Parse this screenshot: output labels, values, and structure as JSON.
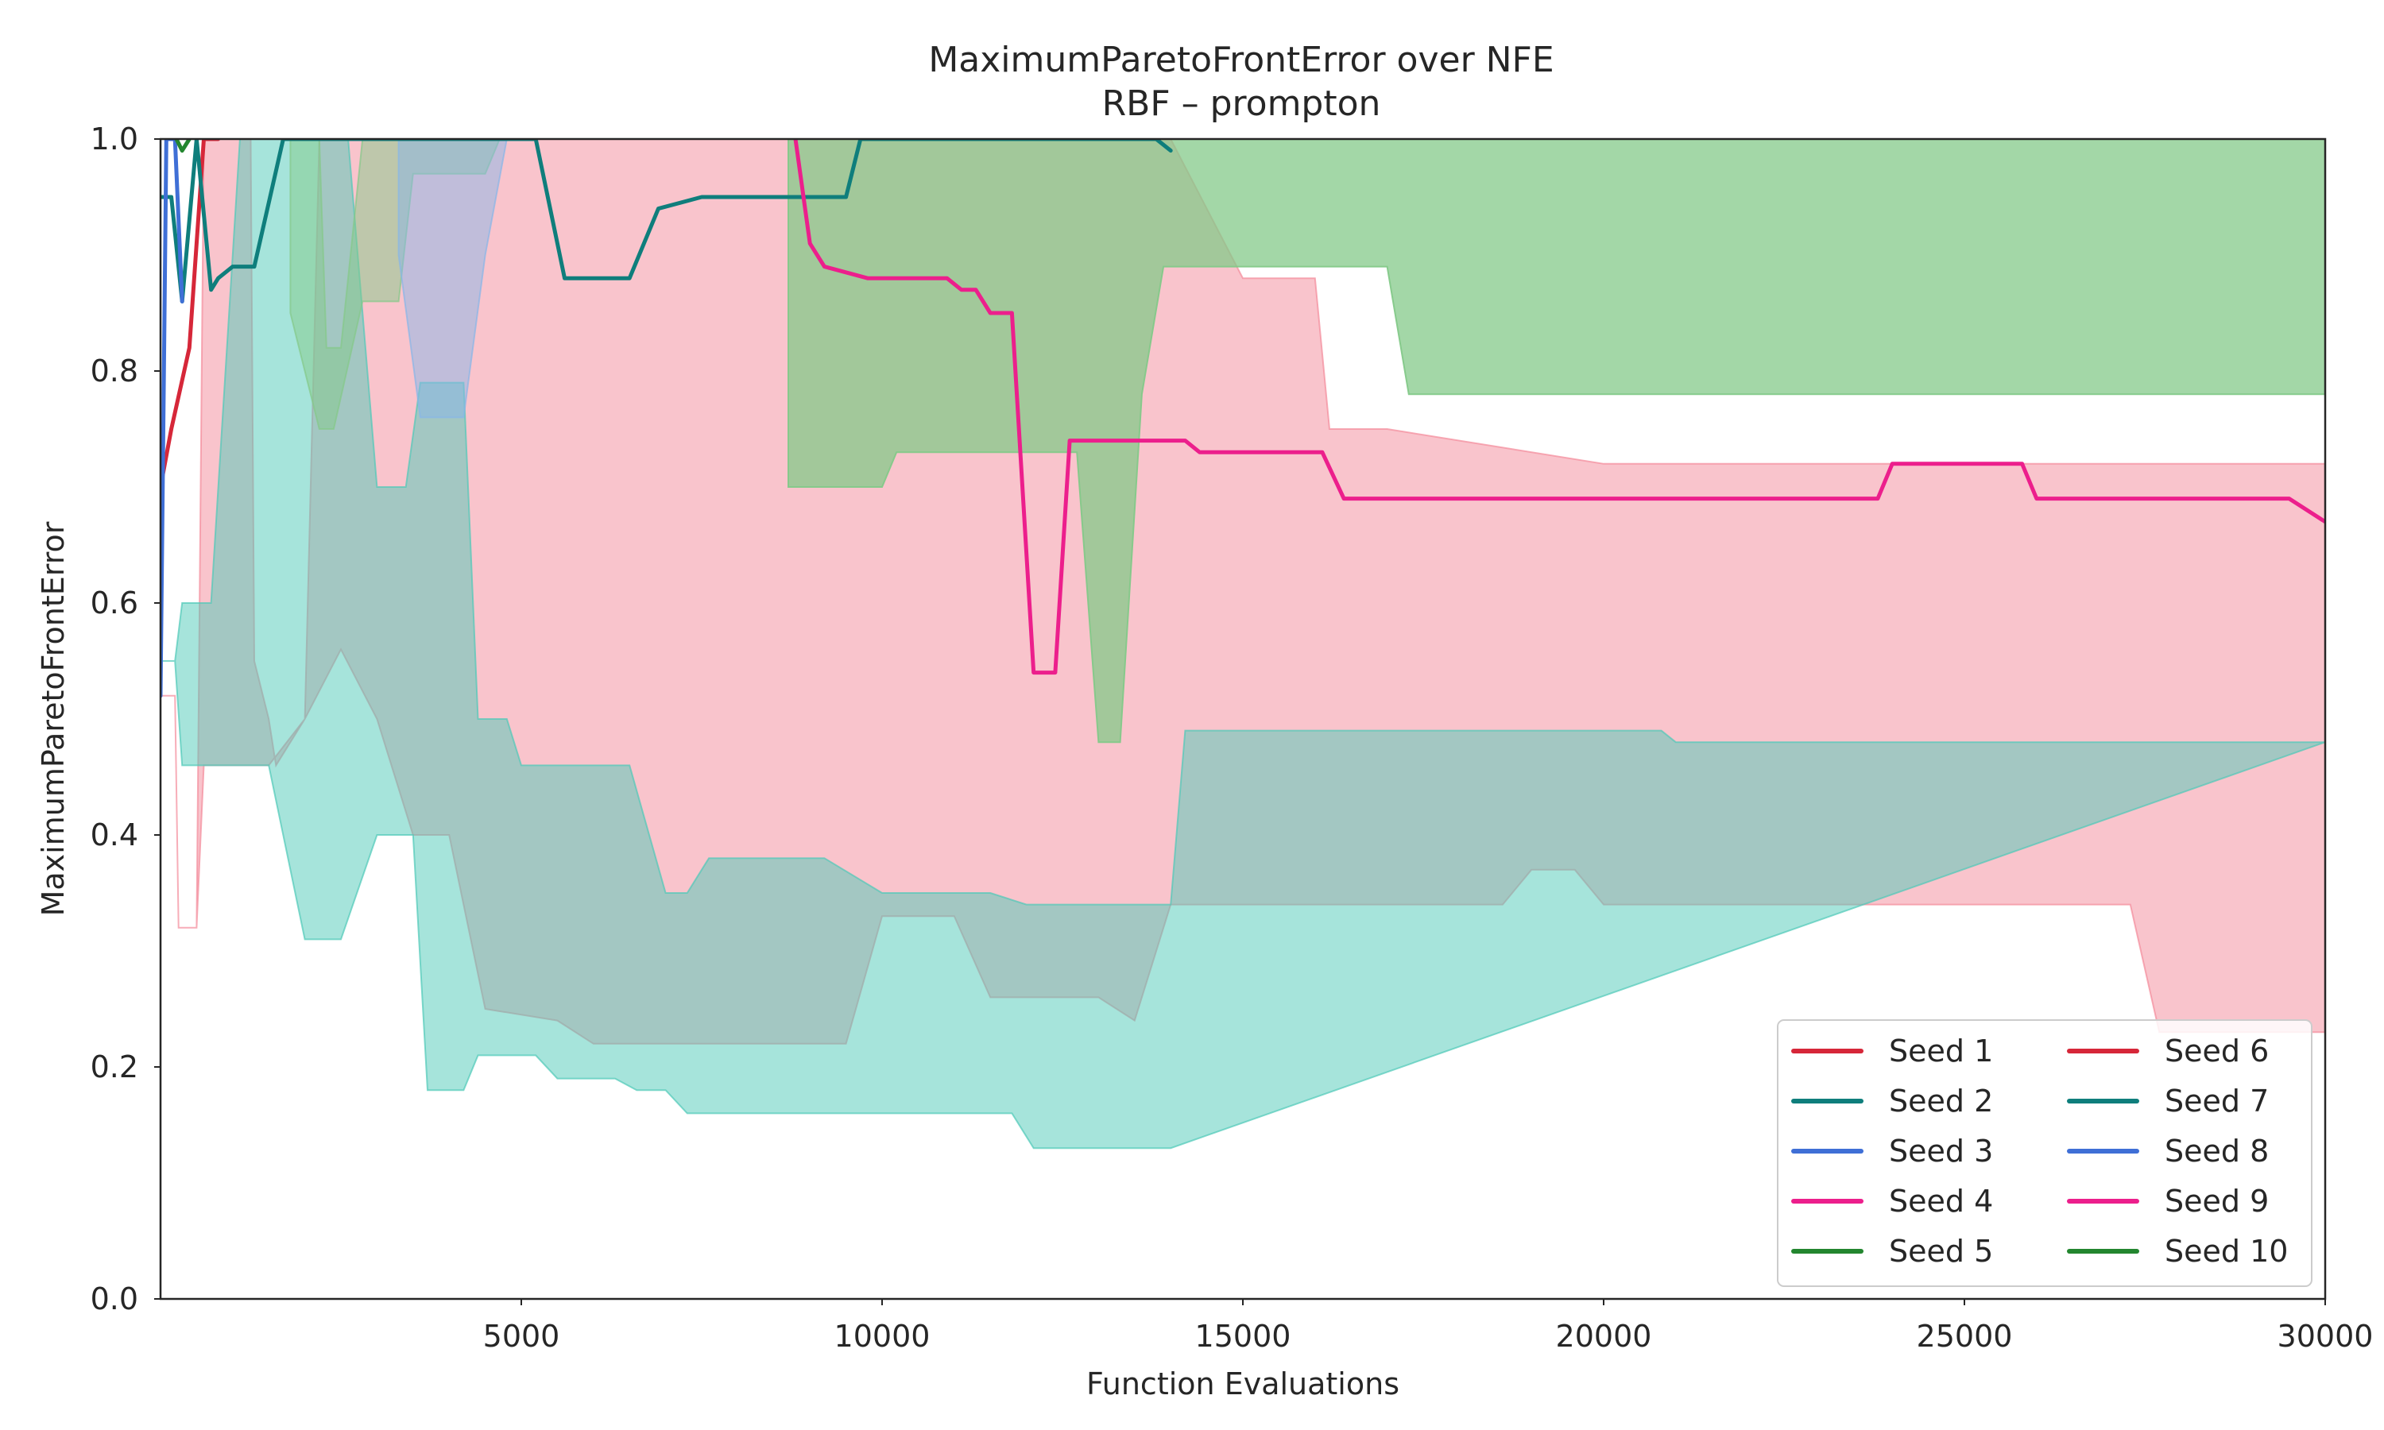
{
  "chart_data": {
    "type": "line",
    "title": "MaximumParetoFrontError over NFE",
    "subtitle": "RBF – prompton",
    "xlabel": "Function Evaluations",
    "ylabel": "MaximumParetoFrontError",
    "xlim": [
      0,
      30000
    ],
    "ylim": [
      0.0,
      1.0
    ],
    "xticks": [
      5000,
      10000,
      15000,
      20000,
      25000,
      30000
    ],
    "xtick_labels": [
      "5000",
      "10000",
      "15000",
      "20000",
      "25000",
      "30000"
    ],
    "yticks": [
      0.0,
      0.2,
      0.4,
      0.6,
      0.8,
      1.0
    ],
    "ytick_labels": [
      "0.0",
      "0.2",
      "0.4",
      "0.6",
      "0.8",
      "1.0"
    ],
    "grid": false,
    "legend_position": "lower-right",
    "legend_columns": 2,
    "bands": [
      {
        "color": "#f48a9a",
        "opacity": 0.5,
        "upper": [
          [
            0,
            0.52
          ],
          [
            200,
            0.52
          ],
          [
            250,
            0.32
          ],
          [
            500,
            0.32
          ],
          [
            600,
            1.0
          ],
          [
            1250,
            1.0
          ],
          [
            1300,
            0.55
          ],
          [
            1500,
            0.5
          ],
          [
            1600,
            0.46
          ],
          [
            2000,
            0.5
          ],
          [
            2200,
            1.0
          ],
          [
            12500,
            1.0
          ],
          [
            14000,
            1.0
          ],
          [
            15000,
            0.88
          ],
          [
            16000,
            0.88
          ],
          [
            16200,
            0.75
          ],
          [
            17000,
            0.75
          ],
          [
            20000,
            0.72
          ],
          [
            29700,
            0.72
          ],
          [
            30000,
            0.72
          ]
        ],
        "lower": [
          [
            0,
            0.52
          ],
          [
            200,
            0.52
          ],
          [
            250,
            0.32
          ],
          [
            500,
            0.32
          ],
          [
            600,
            0.46
          ],
          [
            1500,
            0.46
          ],
          [
            2000,
            0.5
          ],
          [
            2500,
            0.56
          ],
          [
            3000,
            0.5
          ],
          [
            3500,
            0.4
          ],
          [
            4000,
            0.4
          ],
          [
            4500,
            0.25
          ],
          [
            5500,
            0.24
          ],
          [
            6000,
            0.22
          ],
          [
            9500,
            0.22
          ],
          [
            10000,
            0.33
          ],
          [
            11000,
            0.33
          ],
          [
            11500,
            0.26
          ],
          [
            13000,
            0.26
          ],
          [
            13500,
            0.24
          ],
          [
            14000,
            0.34
          ],
          [
            18000,
            0.34
          ],
          [
            18600,
            0.34
          ],
          [
            19000,
            0.37
          ],
          [
            19600,
            0.37
          ],
          [
            20000,
            0.34
          ],
          [
            27300,
            0.34
          ],
          [
            27700,
            0.23
          ],
          [
            30000,
            0.23
          ]
        ]
      },
      {
        "color": "#4ec9b8",
        "opacity": 0.5,
        "upper": [
          [
            0,
            0.55
          ],
          [
            200,
            0.55
          ],
          [
            300,
            0.6
          ],
          [
            700,
            0.6
          ],
          [
            1100,
            1.0
          ],
          [
            2000,
            1.0
          ],
          [
            2600,
            1.0
          ],
          [
            3000,
            0.7
          ],
          [
            3400,
            0.7
          ],
          [
            3600,
            0.79
          ],
          [
            4200,
            0.79
          ],
          [
            4400,
            0.5
          ],
          [
            4800,
            0.5
          ],
          [
            5000,
            0.46
          ],
          [
            6500,
            0.46
          ],
          [
            7000,
            0.35
          ],
          [
            7300,
            0.35
          ],
          [
            7600,
            0.38
          ],
          [
            9200,
            0.38
          ],
          [
            10000,
            0.35
          ],
          [
            11500,
            0.35
          ],
          [
            12000,
            0.34
          ],
          [
            14000,
            0.34
          ],
          [
            14200,
            0.49
          ],
          [
            20800,
            0.49
          ],
          [
            21000,
            0.48
          ],
          [
            30000,
            0.48
          ]
        ],
        "lower": [
          [
            0,
            0.55
          ],
          [
            200,
            0.55
          ],
          [
            300,
            0.46
          ],
          [
            700,
            0.46
          ],
          [
            1100,
            0.46
          ],
          [
            1500,
            0.46
          ],
          [
            2000,
            0.31
          ],
          [
            2500,
            0.31
          ],
          [
            3000,
            0.4
          ],
          [
            3500,
            0.4
          ],
          [
            3700,
            0.18
          ],
          [
            4200,
            0.18
          ],
          [
            4400,
            0.21
          ],
          [
            5200,
            0.21
          ],
          [
            5500,
            0.19
          ],
          [
            6300,
            0.19
          ],
          [
            6600,
            0.18
          ],
          [
            7000,
            0.18
          ],
          [
            7300,
            0.16
          ],
          [
            11800,
            0.16
          ],
          [
            12100,
            0.13
          ],
          [
            13900,
            0.13
          ],
          [
            14000,
            0.13
          ]
        ]
      },
      {
        "color": "#84c989",
        "opacity": 0.75,
        "upper": [
          [
            8700,
            1.0
          ],
          [
            30000,
            1.0
          ]
        ],
        "lower": [
          [
            8700,
            0.7
          ],
          [
            10000,
            0.7
          ],
          [
            10200,
            0.73
          ],
          [
            12700,
            0.73
          ],
          [
            13000,
            0.48
          ],
          [
            13300,
            0.48
          ],
          [
            13600,
            0.78
          ],
          [
            13900,
            0.89
          ],
          [
            17000,
            0.89
          ],
          [
            17300,
            0.78
          ],
          [
            30000,
            0.78
          ]
        ]
      },
      {
        "color": "#84c989",
        "opacity": 0.5,
        "upper": [
          [
            1800,
            1.0
          ],
          [
            2200,
            1.0
          ],
          [
            2300,
            0.82
          ],
          [
            2500,
            0.82
          ],
          [
            2800,
            1.0
          ],
          [
            30000,
            1.0
          ]
        ],
        "lower": [
          [
            1800,
            0.85
          ],
          [
            2200,
            0.75
          ],
          [
            2400,
            0.75
          ],
          [
            2800,
            0.86
          ],
          [
            3300,
            0.86
          ],
          [
            3500,
            0.97
          ],
          [
            4500,
            0.97
          ],
          [
            4700,
            1.0
          ],
          [
            30000,
            1.0
          ]
        ]
      },
      {
        "color": "#87b6e8",
        "opacity": 0.5,
        "upper": [
          [
            3300,
            1.0
          ],
          [
            4800,
            1.0
          ]
        ],
        "lower": [
          [
            3300,
            0.9
          ],
          [
            3600,
            0.76
          ],
          [
            4200,
            0.76
          ],
          [
            4500,
            0.9
          ],
          [
            4800,
            1.0
          ]
        ]
      }
    ],
    "series": [
      {
        "name": "Seed 1",
        "color": "#d62739",
        "x": [
          0,
          150,
          400,
          600,
          800
        ],
        "y": [
          0.7,
          0.75,
          0.82,
          1.0,
          1.0
        ]
      },
      {
        "name": "Seed 2",
        "color": "#0f7e7c",
        "x": [
          0,
          150,
          300,
          500,
          700,
          800,
          1000,
          1300,
          1700,
          1900,
          3500,
          5200,
          5600,
          6000,
          6500,
          6900,
          7500,
          8400,
          9000,
          9500,
          9700,
          13800,
          14000
        ],
        "y": [
          0.95,
          0.95,
          0.86,
          1.0,
          0.87,
          0.88,
          0.89,
          0.89,
          1.0,
          1.0,
          1.0,
          1.0,
          0.88,
          0.88,
          0.88,
          0.94,
          0.95,
          0.95,
          0.95,
          0.95,
          1.0,
          1.0,
          0.99
        ]
      },
      {
        "name": "Seed 3",
        "color": "#3f6fd6",
        "x": [
          0,
          80,
          200,
          300
        ],
        "y": [
          0.52,
          1.0,
          1.0,
          0.86
        ]
      },
      {
        "name": "Seed 4",
        "color": "#ec1f8c",
        "x": [
          8800,
          9000,
          9200,
          9800,
          10300,
          10900,
          11100,
          11300,
          11500,
          11800,
          12100,
          12400,
          12600,
          13000,
          13300,
          14200,
          14400,
          16100,
          16400,
          17100,
          20500,
          20800,
          23800,
          24000,
          25800,
          26000,
          27000,
          27300,
          29500,
          30000
        ],
        "y": [
          1.0,
          0.91,
          0.89,
          0.88,
          0.88,
          0.88,
          0.87,
          0.87,
          0.85,
          0.85,
          0.54,
          0.54,
          0.74,
          0.74,
          0.74,
          0.74,
          0.73,
          0.73,
          0.69,
          0.69,
          0.69,
          0.69,
          0.69,
          0.72,
          0.72,
          0.69,
          0.69,
          0.69,
          0.69,
          0.67
        ]
      },
      {
        "name": "Seed 5",
        "color": "#23862f",
        "x": [
          220,
          300,
          400
        ],
        "y": [
          1.0,
          0.99,
          1.0
        ]
      },
      {
        "name": "Seed 6",
        "color": "#d62739",
        "x": [],
        "y": []
      },
      {
        "name": "Seed 7",
        "color": "#0f7e7c",
        "x": [],
        "y": []
      },
      {
        "name": "Seed 8",
        "color": "#3f6fd6",
        "x": [],
        "y": []
      },
      {
        "name": "Seed 9",
        "color": "#ec1f8c",
        "x": [],
        "y": []
      },
      {
        "name": "Seed 10",
        "color": "#23862f",
        "x": [],
        "y": []
      }
    ]
  }
}
